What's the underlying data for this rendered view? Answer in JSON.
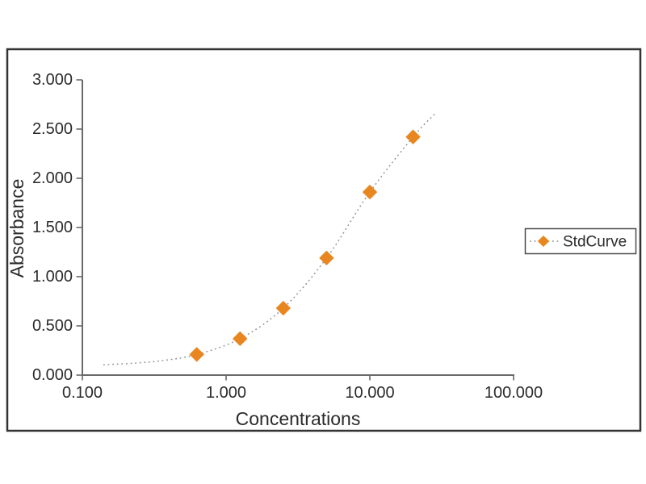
{
  "colors": {
    "background": "#ffffff",
    "frame": "#333333",
    "axis": "#67696b",
    "text": "#2b2b2b",
    "curve": "#8e9092",
    "marker": "#e8861f",
    "legend_border": "#4a4a4a"
  },
  "chart_data": {
    "type": "scatter",
    "title": "",
    "xlabel": "Concentrations",
    "ylabel": "Absorbance",
    "x_scale": "log",
    "xlim": [
      0.1,
      100
    ],
    "ylim": [
      0,
      3
    ],
    "grid": false,
    "x_ticks": [
      0.1,
      1,
      10,
      100
    ],
    "x_tick_labels": [
      "0.100",
      "1.000",
      "10.000",
      "100.000"
    ],
    "y_ticks": [
      0,
      0.5,
      1,
      1.5,
      2,
      2.5,
      3
    ],
    "y_tick_labels": [
      "0.000",
      "0.500",
      "1.000",
      "1.500",
      "2.000",
      "2.500",
      "3.000"
    ],
    "legend": {
      "position": "right",
      "entries": [
        {
          "label": "StdCurve",
          "marker": "diamond"
        }
      ]
    },
    "series": [
      {
        "name": "StdCurve",
        "marker": "diamond",
        "points": [
          {
            "x": 0.625,
            "y": 0.21
          },
          {
            "x": 1.25,
            "y": 0.37
          },
          {
            "x": 2.5,
            "y": 0.68
          },
          {
            "x": 5,
            "y": 1.19
          },
          {
            "x": 10,
            "y": 1.86
          },
          {
            "x": 20,
            "y": 2.42
          }
        ]
      }
    ],
    "fit_curve": {
      "style": "dotted",
      "points": [
        [
          0.14,
          0.105
        ],
        [
          0.22,
          0.12
        ],
        [
          0.35,
          0.145
        ],
        [
          0.625,
          0.21
        ],
        [
          1.25,
          0.37
        ],
        [
          2.5,
          0.68
        ],
        [
          5,
          1.19
        ],
        [
          10,
          1.86
        ],
        [
          20,
          2.42
        ],
        [
          29,
          2.67
        ]
      ]
    }
  }
}
